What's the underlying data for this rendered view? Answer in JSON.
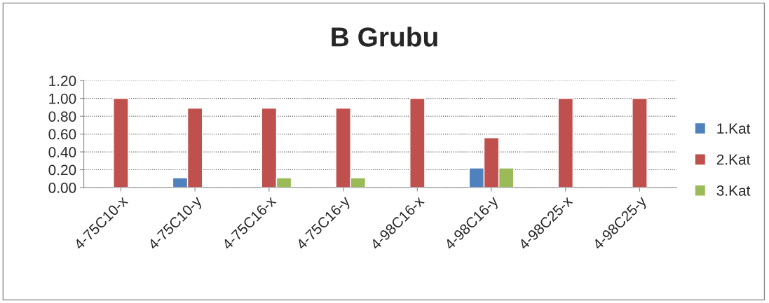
{
  "chart_data": {
    "type": "bar",
    "title": "B Grubu",
    "categories": [
      "4-75C10-x",
      "4-75C10-y",
      "4-75C16-x",
      "4-75C16-y",
      "4-98C16-x",
      "4-98C16-y",
      "4-98C25-x",
      "4-98C25-y"
    ],
    "series": [
      {
        "name": "1.Kat",
        "color": "#4f81bd",
        "values": [
          null,
          0.11,
          null,
          null,
          null,
          0.22,
          null,
          null
        ]
      },
      {
        "name": "2.Kat",
        "color": "#c0504d",
        "values": [
          1.0,
          0.89,
          0.89,
          0.89,
          1.0,
          0.56,
          1.0,
          1.0
        ]
      },
      {
        "name": "3.Kat",
        "color": "#9bbb59",
        "values": [
          null,
          null,
          0.11,
          0.11,
          null,
          0.22,
          null,
          null
        ]
      }
    ],
    "ylim": [
      0,
      1.2
    ],
    "yticks": [
      {
        "value": 0,
        "label": "0.00"
      },
      {
        "value": 0.2,
        "label": "0.20"
      },
      {
        "value": 0.4,
        "label": "0.40"
      },
      {
        "value": 0.6,
        "label": "0.60"
      },
      {
        "value": 0.8,
        "label": "0.80"
      },
      {
        "value": 1.0,
        "label": "1.00"
      },
      {
        "value": 1.2,
        "label": "1.20"
      }
    ],
    "grid": "y",
    "legend": "right"
  }
}
